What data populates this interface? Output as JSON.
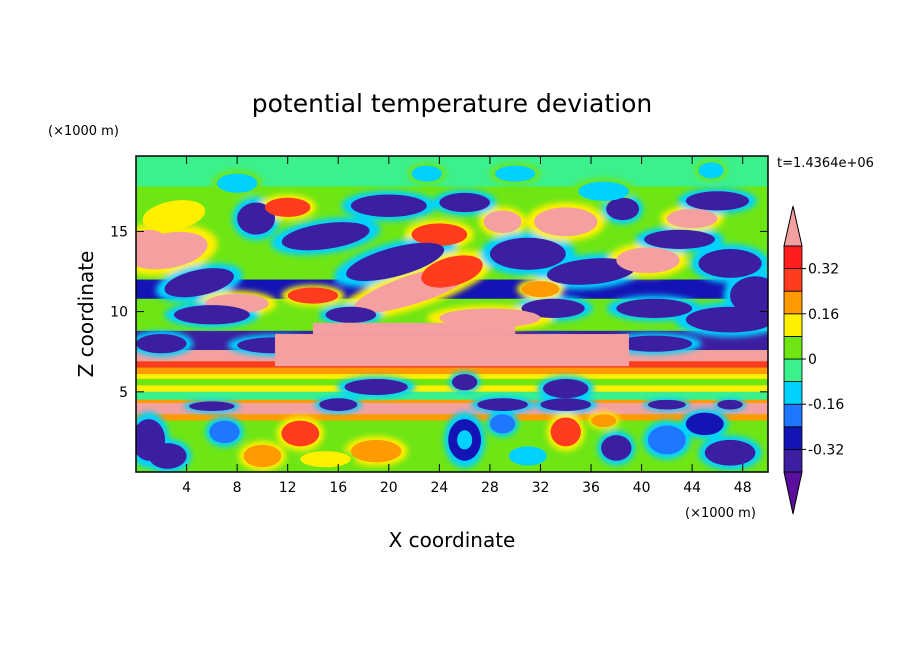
{
  "chart_data": {
    "type": "heatmap",
    "title": "potential temperature deviation",
    "xlabel": "X coordinate",
    "ylabel": "Z coordinate",
    "x_unit": "(×1000 m)",
    "y_unit": "(×1000 m)",
    "time_label": "t=1.4364e+06",
    "xlim": [
      0,
      50
    ],
    "ylim": [
      0,
      19.7
    ],
    "x_ticks": [
      "4",
      "8",
      "12",
      "16",
      "20",
      "24",
      "28",
      "32",
      "36",
      "40",
      "44",
      "48"
    ],
    "x_tick_values": [
      4,
      8,
      12,
      16,
      20,
      24,
      28,
      32,
      36,
      40,
      44,
      48
    ],
    "y_ticks": [
      "5",
      "10",
      "15"
    ],
    "y_tick_values": [
      5,
      10,
      15
    ],
    "colorbar": {
      "levels": [
        -0.4,
        -0.32,
        -0.24,
        -0.16,
        -0.08,
        0,
        0.08,
        0.16,
        0.24,
        0.32,
        0.4
      ],
      "labels": [
        "0.32",
        "0.16",
        "0",
        "-0.16",
        "-0.32"
      ],
      "label_values": [
        0.32,
        0.16,
        0,
        -0.16,
        -0.32
      ],
      "colors": [
        "#5a0f9c",
        "#3c1ea0",
        "#1414b4",
        "#1e78ff",
        "#00d2ff",
        "#3cf08c",
        "#6ee614",
        "#fff000",
        "#ff9b00",
        "#ff3c1e",
        "#ff1e1e",
        "#f5a0a0"
      ],
      "extend": "both"
    }
  }
}
